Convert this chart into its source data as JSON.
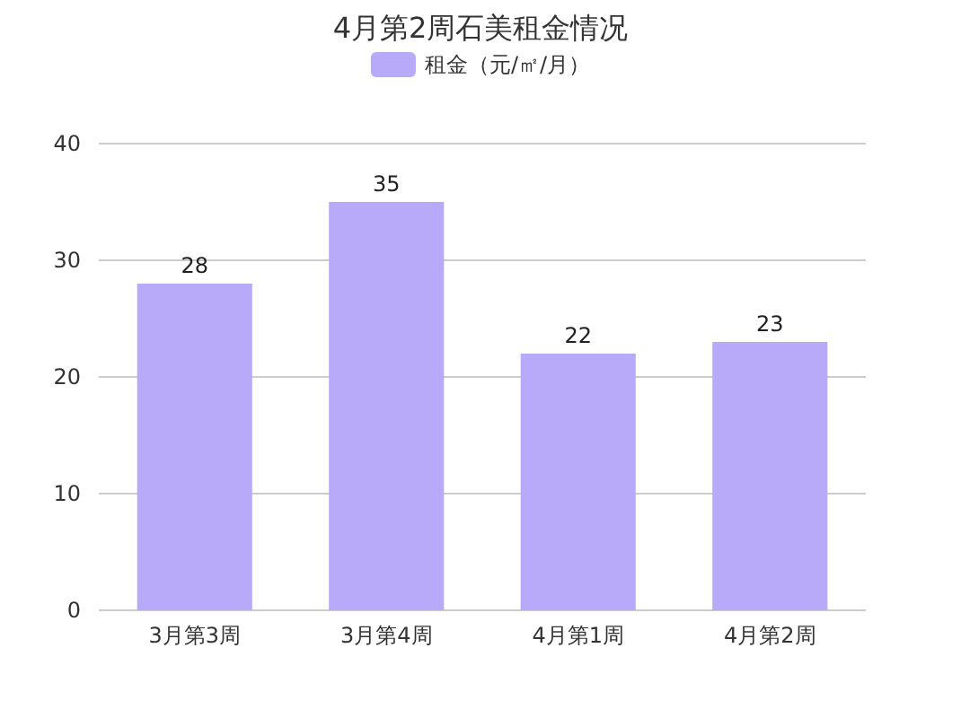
{
  "chart_data": {
    "type": "bar",
    "title": "4月第2周石美租金情况",
    "categories": [
      "3月第3周",
      "3月第4周",
      "4月第1周",
      "4月第2周"
    ],
    "series": [
      {
        "name": "租金（元/㎡/月）",
        "color": "#b8aaf8",
        "values": [
          28,
          35,
          22,
          23
        ]
      }
    ],
    "ylim": [
      0,
      40
    ],
    "yticks": [
      0,
      10,
      20,
      30,
      40
    ],
    "grid": "y",
    "legend": "top",
    "data_labels": true
  }
}
